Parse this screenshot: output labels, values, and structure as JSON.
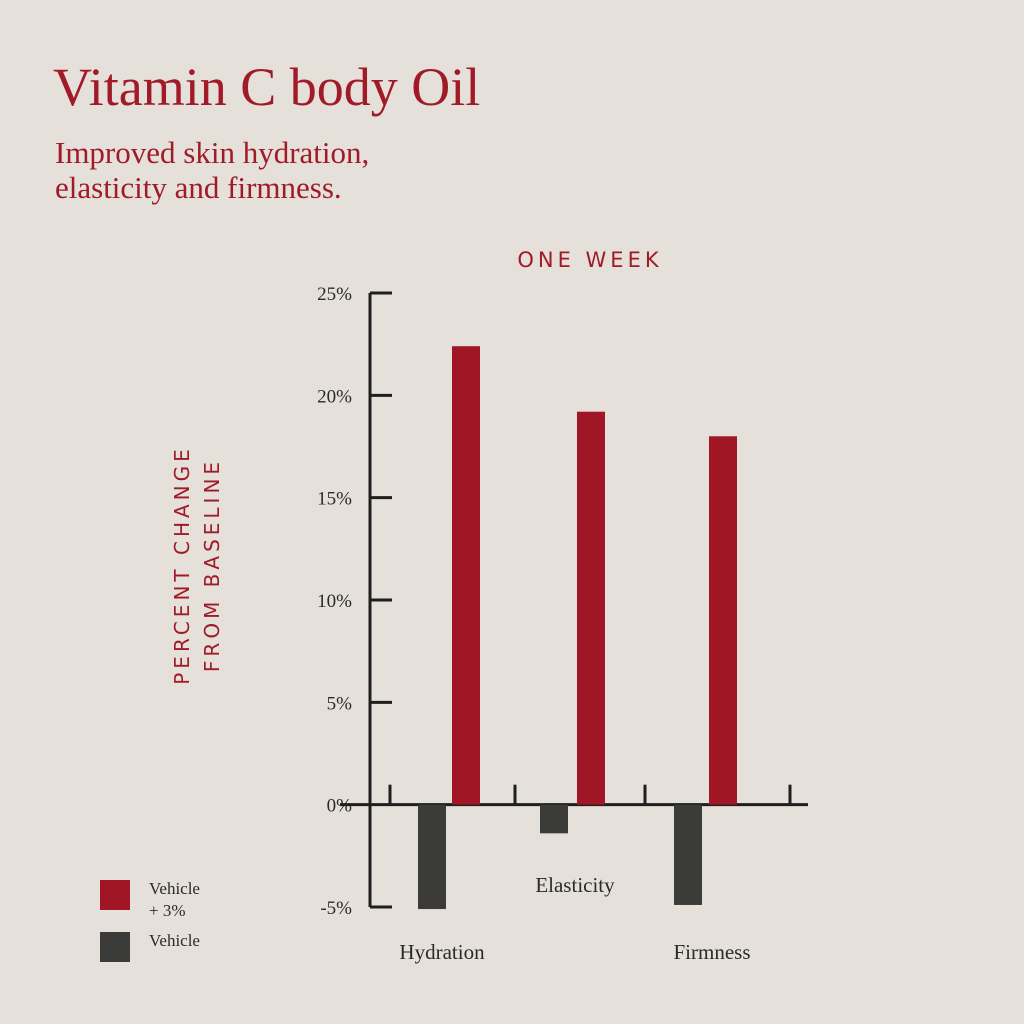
{
  "title": "Vitamin C body Oil",
  "subtitle_lines": [
    "Improved skin hydration,",
    "elasticity and firmness."
  ],
  "chart_data": {
    "type": "bar",
    "title": "ONE WEEK",
    "ylabel_lines": [
      "PERCENT CHANGE",
      "FROM BASELINE"
    ],
    "xlabel": "",
    "categories": [
      "Hydration",
      "Elasticity",
      "Firmness"
    ],
    "series": [
      {
        "name": "Vehicle",
        "color": "#3b3b39",
        "values": [
          -5.1,
          -1.4,
          -4.9
        ]
      },
      {
        "name": "Vehicle + 3%",
        "color": "#a01625",
        "values": [
          22.4,
          19.2,
          18.0
        ]
      }
    ],
    "ylim": [
      -5,
      25
    ],
    "yticks": [
      -5,
      0,
      5,
      10,
      15,
      20,
      25
    ],
    "ytick_labels": [
      "-5%",
      "0%",
      "5%",
      "10%",
      "15%",
      "20%",
      "25%"
    ],
    "grid": false,
    "legend": {
      "position": "bottom-left",
      "items": [
        {
          "label_lines": [
            "Vehicle",
            "+ 3%"
          ],
          "color": "#a01625"
        },
        {
          "label_lines": [
            "Vehicle"
          ],
          "color": "#3b3b39"
        }
      ]
    }
  }
}
